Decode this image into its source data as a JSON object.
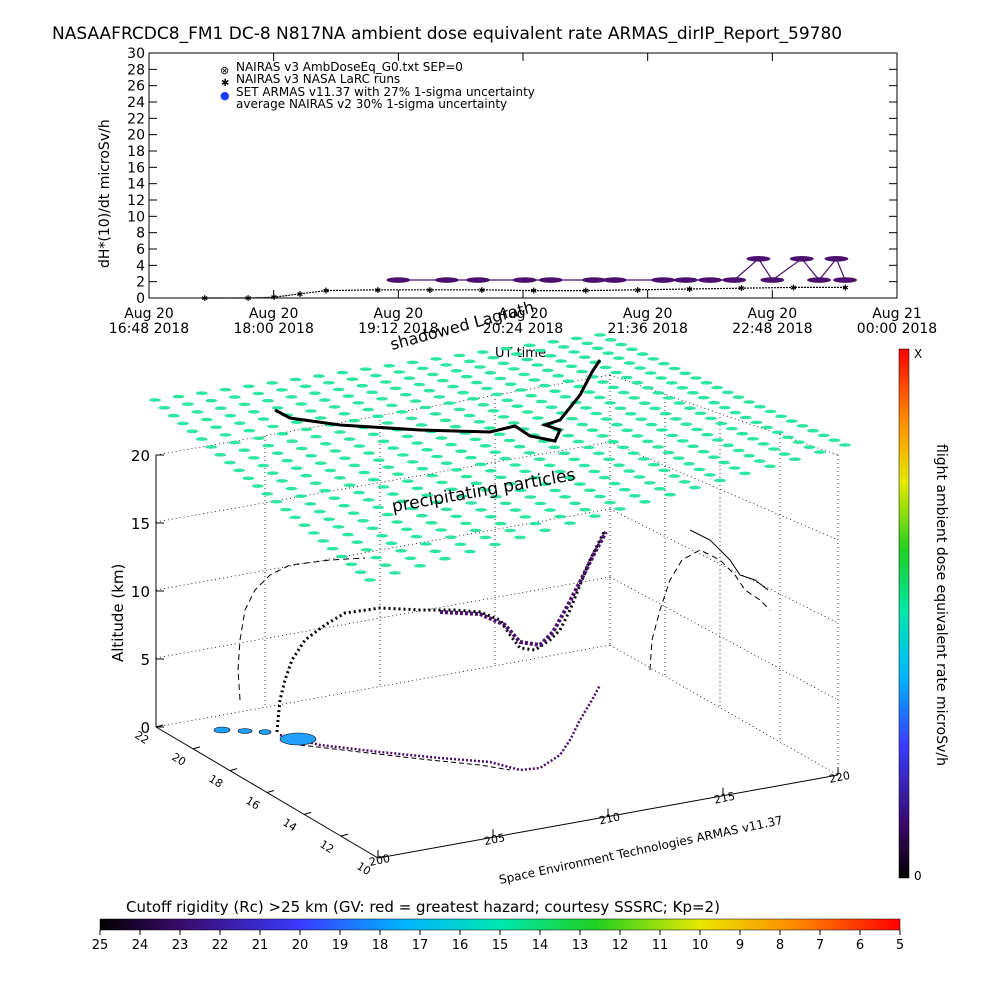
{
  "title": "NASAAFRCDC8_FM1 DC-8    N817NA ambient dose equivalent rate ARMAS_dirIP_Report_59780",
  "top_chart": {
    "ylabel": "dH*(10)/dt microSv/h",
    "xlabel": "UT time",
    "yticks": [
      "0",
      "2",
      "4",
      "6",
      "8",
      "10",
      "12",
      "14",
      "16",
      "18",
      "20",
      "22",
      "24",
      "26",
      "28",
      "30"
    ],
    "xticks": [
      {
        "line1": "Aug 20",
        "line2": "16:48 2018"
      },
      {
        "line1": "Aug 20",
        "line2": "18:00 2018"
      },
      {
        "line1": "Aug 20",
        "line2": "19:12 2018"
      },
      {
        "line1": "Aug 20",
        "line2": "20:24 2018"
      },
      {
        "line1": "Aug 20",
        "line2": "21:36 2018"
      },
      {
        "line1": "Aug 20",
        "line2": "22:48 2018"
      },
      {
        "line1": "Aug 21",
        "line2": "00:00 2018"
      }
    ],
    "legend": [
      {
        "symbol": "⊗",
        "label": "NAIRAS v3 AmbDoseEq_G0.txt SEP=0"
      },
      {
        "symbol": "✱",
        "label": "NAIRAS v3 NASA LaRC runs"
      },
      {
        "symbol": "●",
        "label": "SET ARMAS v11.37 with 27% 1-sigma uncertainty"
      },
      {
        "symbol": "",
        "label": "average NAIRAS v2 30% 1-sigma uncertainty"
      }
    ]
  },
  "chart_data": [
    {
      "type": "scatter",
      "title": "NASAAFRCDC8_FM1 DC-8    N817NA ambient dose equivalent rate ARMAS_dirIP_Report_59780",
      "xlabel": "UT time",
      "ylabel": "dH*(10)/dt microSv/h",
      "ylim": [
        0,
        30
      ],
      "xlim": [
        "2018-08-20 16:48",
        "2018-08-21 00:00"
      ],
      "grid": false,
      "legend_position": "top-left",
      "series": [
        {
          "name": "SET ARMAS v11.37 with 27% 1-sigma uncertainty",
          "x": [
            "19:12",
            "19:40",
            "19:58",
            "20:25",
            "20:40",
            "21:05",
            "21:17",
            "21:45",
            "21:58",
            "22:12",
            "22:26",
            "22:40",
            "22:48",
            "23:05",
            "23:15",
            "23:25",
            "23:30"
          ],
          "y": [
            2.2,
            2.2,
            2.2,
            2.2,
            2.2,
            2.2,
            2.2,
            2.2,
            2.2,
            2.2,
            2.2,
            4.8,
            2.2,
            4.8,
            2.2,
            4.8,
            2.2
          ]
        },
        {
          "name": "NAIRAS v3 NASA LaRC runs",
          "x": [
            "17:20",
            "17:45",
            "18:00",
            "18:15",
            "18:30",
            "19:00",
            "19:30",
            "20:00",
            "20:30",
            "21:00",
            "21:30",
            "22:00",
            "22:30",
            "23:00",
            "23:30"
          ],
          "y": [
            0.0,
            0.0,
            0.1,
            0.5,
            0.9,
            1.0,
            1.0,
            1.0,
            0.9,
            0.9,
            1.0,
            1.1,
            1.2,
            1.3,
            1.3
          ]
        }
      ]
    },
    {
      "type": "scatter",
      "subtype": "3d-flight-track",
      "zlabel": "Altitude (km)",
      "zticks": [
        "0",
        "5",
        "10",
        "15",
        "20"
      ],
      "yticks": [
        "10",
        "12",
        "14",
        "16",
        "18",
        "20",
        "22"
      ],
      "xticks": [
        "200",
        "205",
        "210",
        "215",
        "220"
      ],
      "legend_position": "right"
    }
  ],
  "three_d": {
    "zlabel": "Altitude (km)",
    "zticks": [
      "0",
      "5",
      "10",
      "15",
      "20"
    ],
    "lat_ticks": [
      "10",
      "12",
      "14",
      "16",
      "18",
      "20",
      "22"
    ],
    "lon_ticks": [
      "200",
      "205",
      "210",
      "215",
      "220"
    ],
    "plane_label": "precipitating particles",
    "annotation": "shadowed Lagrath",
    "credit": "Space Environment Technologies ARMAS v11.37"
  },
  "colorbar_right": {
    "title": "flight ambient dose equivalent rate microSv/h",
    "top_label": "X",
    "bottom_label": "0"
  },
  "colorbar_bottom": {
    "title": "Cutoff rigidity (Rc) >25 km (GV: red = greatest hazard; courtesy SSSRC; Kp=2)",
    "ticks": [
      "25",
      "24",
      "23",
      "22",
      "21",
      "20",
      "19",
      "18",
      "17",
      "16",
      "15",
      "14",
      "13",
      "12",
      "11",
      "10",
      "9",
      "8",
      "7",
      "6",
      "5"
    ]
  },
  "colors": {
    "armas_points": "#4b0f6e",
    "plane": "#2ee6a0",
    "track": "#000000"
  }
}
